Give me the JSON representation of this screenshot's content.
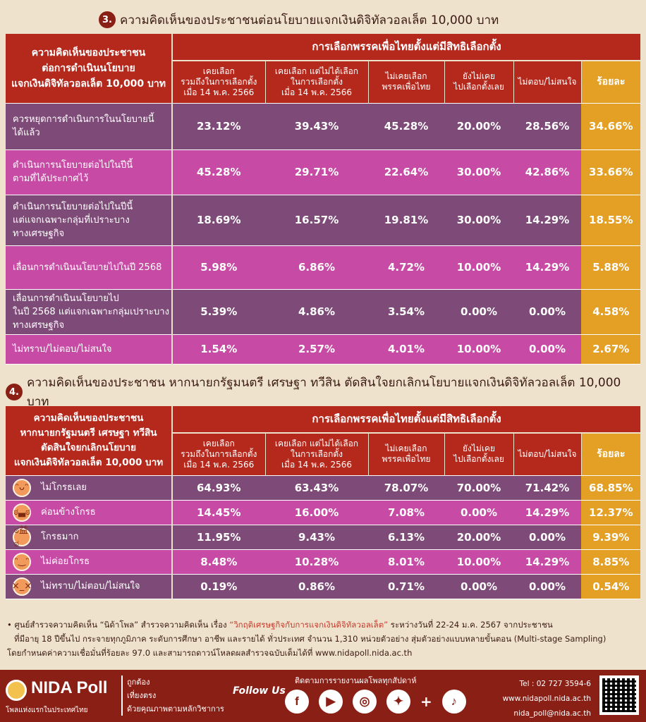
{
  "section3": {
    "number": "3.",
    "title": "ความคิดเห็นของประชาชนต่อนโยบายแจกเงินดิจิทัลวอลเล็ต 10,000 บาท",
    "left_header": [
      "ความคิดเห็นของประชาชน",
      "ต่อการดำเนินนโยบาย",
      "แจกเงินดิจิทัลวอลเล็ต 10,000 บาท"
    ],
    "group_header": "การเลือกพรรคเพื่อไทยตั้งแต่มีสิทธิเลือกตั้ง",
    "columns": [
      [
        "เคยเลือก",
        "รวมถึงในการเลือกตั้ง",
        "เมื่อ 14 พ.ค. 2566"
      ],
      [
        "เคยเลือก แต่ไม่ได้เลือก",
        "ในการเลือกตั้ง",
        "เมื่อ 14 พ.ค. 2566"
      ],
      [
        "ไม่เคยเลือก",
        "พรรคเพื่อไทย"
      ],
      [
        "ยังไม่เคย",
        "ไปเลือกตั้งเลย"
      ],
      [
        "ไม่ตอบ/ไม่สนใจ"
      ]
    ],
    "pct_header": "ร้อยละ",
    "rows": [
      {
        "label": [
          "ควรหยุดการดำเนินการในนโยบายนี้",
          "ได้แล้ว"
        ],
        "values": [
          "23.12%",
          "39.43%",
          "45.28%",
          "20.00%",
          "28.56%"
        ],
        "pct": "34.66%"
      },
      {
        "label": [
          "ดำเนินการนโยบายต่อไปในปีนี้",
          "ตามที่ได้ประกาศไว้"
        ],
        "values": [
          "45.28%",
          "29.71%",
          "22.64%",
          "30.00%",
          "42.86%"
        ],
        "pct": "33.66%"
      },
      {
        "label": [
          "ดำเนินการนโยบายต่อไปในปีนี้",
          "แต่แจกเฉพาะกลุ่มที่เปราะบาง",
          "ทางเศรษฐกิจ"
        ],
        "values": [
          "18.69%",
          "16.57%",
          "19.81%",
          "30.00%",
          "14.29%"
        ],
        "pct": "18.55%"
      },
      {
        "label": [
          "เลื่อนการดำเนินนโยบายไปในปี 2568"
        ],
        "values": [
          "5.98%",
          "6.86%",
          "4.72%",
          "10.00%",
          "14.29%"
        ],
        "pct": "5.88%"
      },
      {
        "label": [
          "เลื่อนการดำเนินนโยบายไป",
          "ในปี 2568 แต่แจกเฉพาะกลุ่มเปราะบาง",
          "ทางเศรษฐกิจ"
        ],
        "values": [
          "5.39%",
          "4.86%",
          "3.54%",
          "0.00%",
          "0.00%"
        ],
        "pct": "4.58%"
      },
      {
        "label": [
          "ไม่ทราบ/ไม่ตอบ/ไม่สนใจ"
        ],
        "values": [
          "1.54%",
          "2.57%",
          "4.01%",
          "10.00%",
          "0.00%"
        ],
        "pct": "2.67%"
      }
    ]
  },
  "section4": {
    "number": "4.",
    "title": "ความคิดเห็นของประชาชน หากนายกรัฐมนตรี เศรษฐา ทวีสิน ตัดสินใจยกเลิกนโยบายแจกเงินดิจิทัลวอลเล็ต 10,000 บาท",
    "left_header": [
      "ความคิดเห็นของประชาชน",
      "หากนายกรัฐมนตรี เศรษฐา ทวีสิน",
      "ตัดสินใจยกเลิกนโยบาย",
      "แจกเงินดิจิทัลวอลเล็ต 10,000 บาท"
    ],
    "group_header": "การเลือกพรรคเพื่อไทยตั้งแต่มีสิทธิเลือกตั้ง",
    "pct_header": "ร้อยละ",
    "rows": [
      {
        "icon": "halo-smile-face-icon",
        "glyph": "ᵔᴗᵔ",
        "label": "ไม่โกรธเลย",
        "values": [
          "64.93%",
          "63.43%",
          "78.07%",
          "70.00%",
          "71.42%"
        ],
        "pct": "68.85%"
      },
      {
        "icon": "grimace-face-icon",
        "glyph": "ಠ▃ಠ",
        "label": "ค่อนข้างโกรธ",
        "values": [
          "14.45%",
          "16.00%",
          "7.08%",
          "0.00%",
          "14.29%"
        ],
        "pct": "12.37%"
      },
      {
        "icon": "angry-fire-face-icon",
        "glyph": "ಠ益ಠ",
        "label": "โกรธมาก",
        "values": [
          "11.95%",
          "9.43%",
          "6.13%",
          "20.00%",
          "0.00%"
        ],
        "pct": "9.39%"
      },
      {
        "icon": "mild-smile-face-icon",
        "glyph": "ᵔ‿ᵔ",
        "label": "ไม่ค่อยโกรธ",
        "values": [
          "8.48%",
          "10.28%",
          "8.01%",
          "10.00%",
          "14.29%"
        ],
        "pct": "8.85%"
      },
      {
        "icon": "confused-face-icon",
        "glyph": "×_×",
        "label": "ไม่ทราบ/ไม่ตอบ/ไม่สนใจ",
        "values": [
          "0.19%",
          "0.86%",
          "0.71%",
          "0.00%",
          "0.00%"
        ],
        "pct": "0.54%"
      }
    ]
  },
  "footnote": {
    "bullet": "•",
    "line1_a": "ศูนย์สำรวจความคิดเห็น “นิด้าโพล” สำรวจความคิดเห็น เรื่อง ",
    "line1_hl": "“วิกฤติเศรษฐกิจกับการแจกเงินดิจิทัลวอลเล็ต”",
    "line1_b": " ระหว่างวันที่ 22-24 ม.ค. 2567 จากประชาชน",
    "line2": "ที่มีอายุ 18 ปีขึ้นไป กระจายทุกภูมิภาค ระดับการศึกษา อาชีพ และรายได้ ทั่วประเทศ จำนวน 1,310 หน่วยตัวอย่าง สุ่มตัวอย่างแบบหลายขั้นตอน (Multi-stage Sampling)",
    "line3": "โดยกำหนดค่าความเชื่อมั่นที่ร้อยละ 97.0 และสามารถดาวน์โหลดผลสำรวจฉบับเต็มได้ที่ www.nidapoll.nida.ac.th"
  },
  "footer": {
    "logo": "NIDA Poll",
    "logo_sub": "โพลแห่งแรกในประเทศไทย",
    "tags": [
      "ถูกต้อง",
      "เที่ยงตรง",
      "ด้วยคุณภาพตามหลักวิชาการ"
    ],
    "follow": "Follow Us",
    "follow_head": "ติดตามการรายงานผลโพลทุกสัปดาห์",
    "socials": [
      {
        "icon": "facebook-icon",
        "glyph": "f"
      },
      {
        "icon": "youtube-icon",
        "glyph": "▶"
      },
      {
        "icon": "instagram-icon",
        "glyph": "◎"
      },
      {
        "icon": "twitter-icon",
        "glyph": "✦"
      }
    ],
    "tiktok": {
      "icon": "tiktok-icon",
      "glyph": "♪"
    },
    "plus": "+",
    "tel": "Tel : 02 727 3594-6",
    "web": "www.nidapoll.nida.ac.th",
    "email": "nida_poll@nida.ac.th",
    "colors": {
      "dark_red": "#8a1f16",
      "header_red": "#b5281c",
      "gold": "#e3a025",
      "purple": "#7e4a78",
      "magenta": "#c74aa5"
    }
  }
}
